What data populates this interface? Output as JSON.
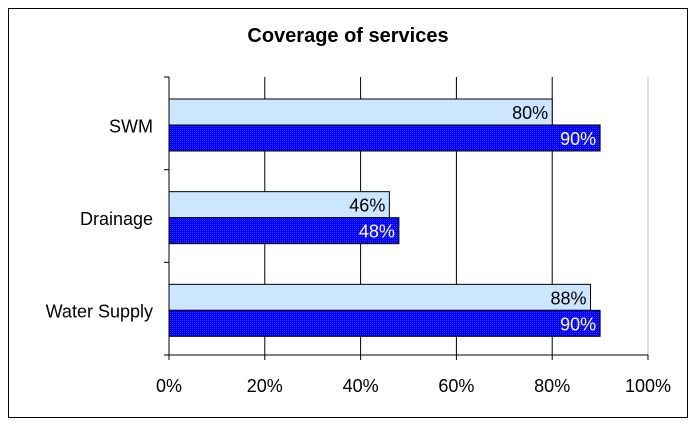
{
  "chart_data": {
    "type": "bar",
    "orientation": "horizontal",
    "title": "Coverage of services",
    "categories": [
      "Water Supply",
      "Drainage",
      "SWM"
    ],
    "series": [
      {
        "values": [
          88,
          46,
          80
        ],
        "labels": [
          "88%",
          "46%",
          "80%"
        ],
        "color": "#CCE6FF",
        "label_color": "#000000"
      },
      {
        "values": [
          90,
          48,
          90
        ],
        "labels": [
          "90%",
          "48%",
          "90%"
        ],
        "color": "#0000FF",
        "label_color": "#ffffff"
      }
    ],
    "xlim": [
      0,
      100
    ],
    "x_ticks": [
      "0%",
      "20%",
      "40%",
      "60%",
      "80%",
      "100%"
    ],
    "x_tick_values": [
      0,
      20,
      40,
      60,
      80,
      100
    ],
    "xlabel": "",
    "ylabel": "",
    "grid": "vertical",
    "legend": "none"
  }
}
